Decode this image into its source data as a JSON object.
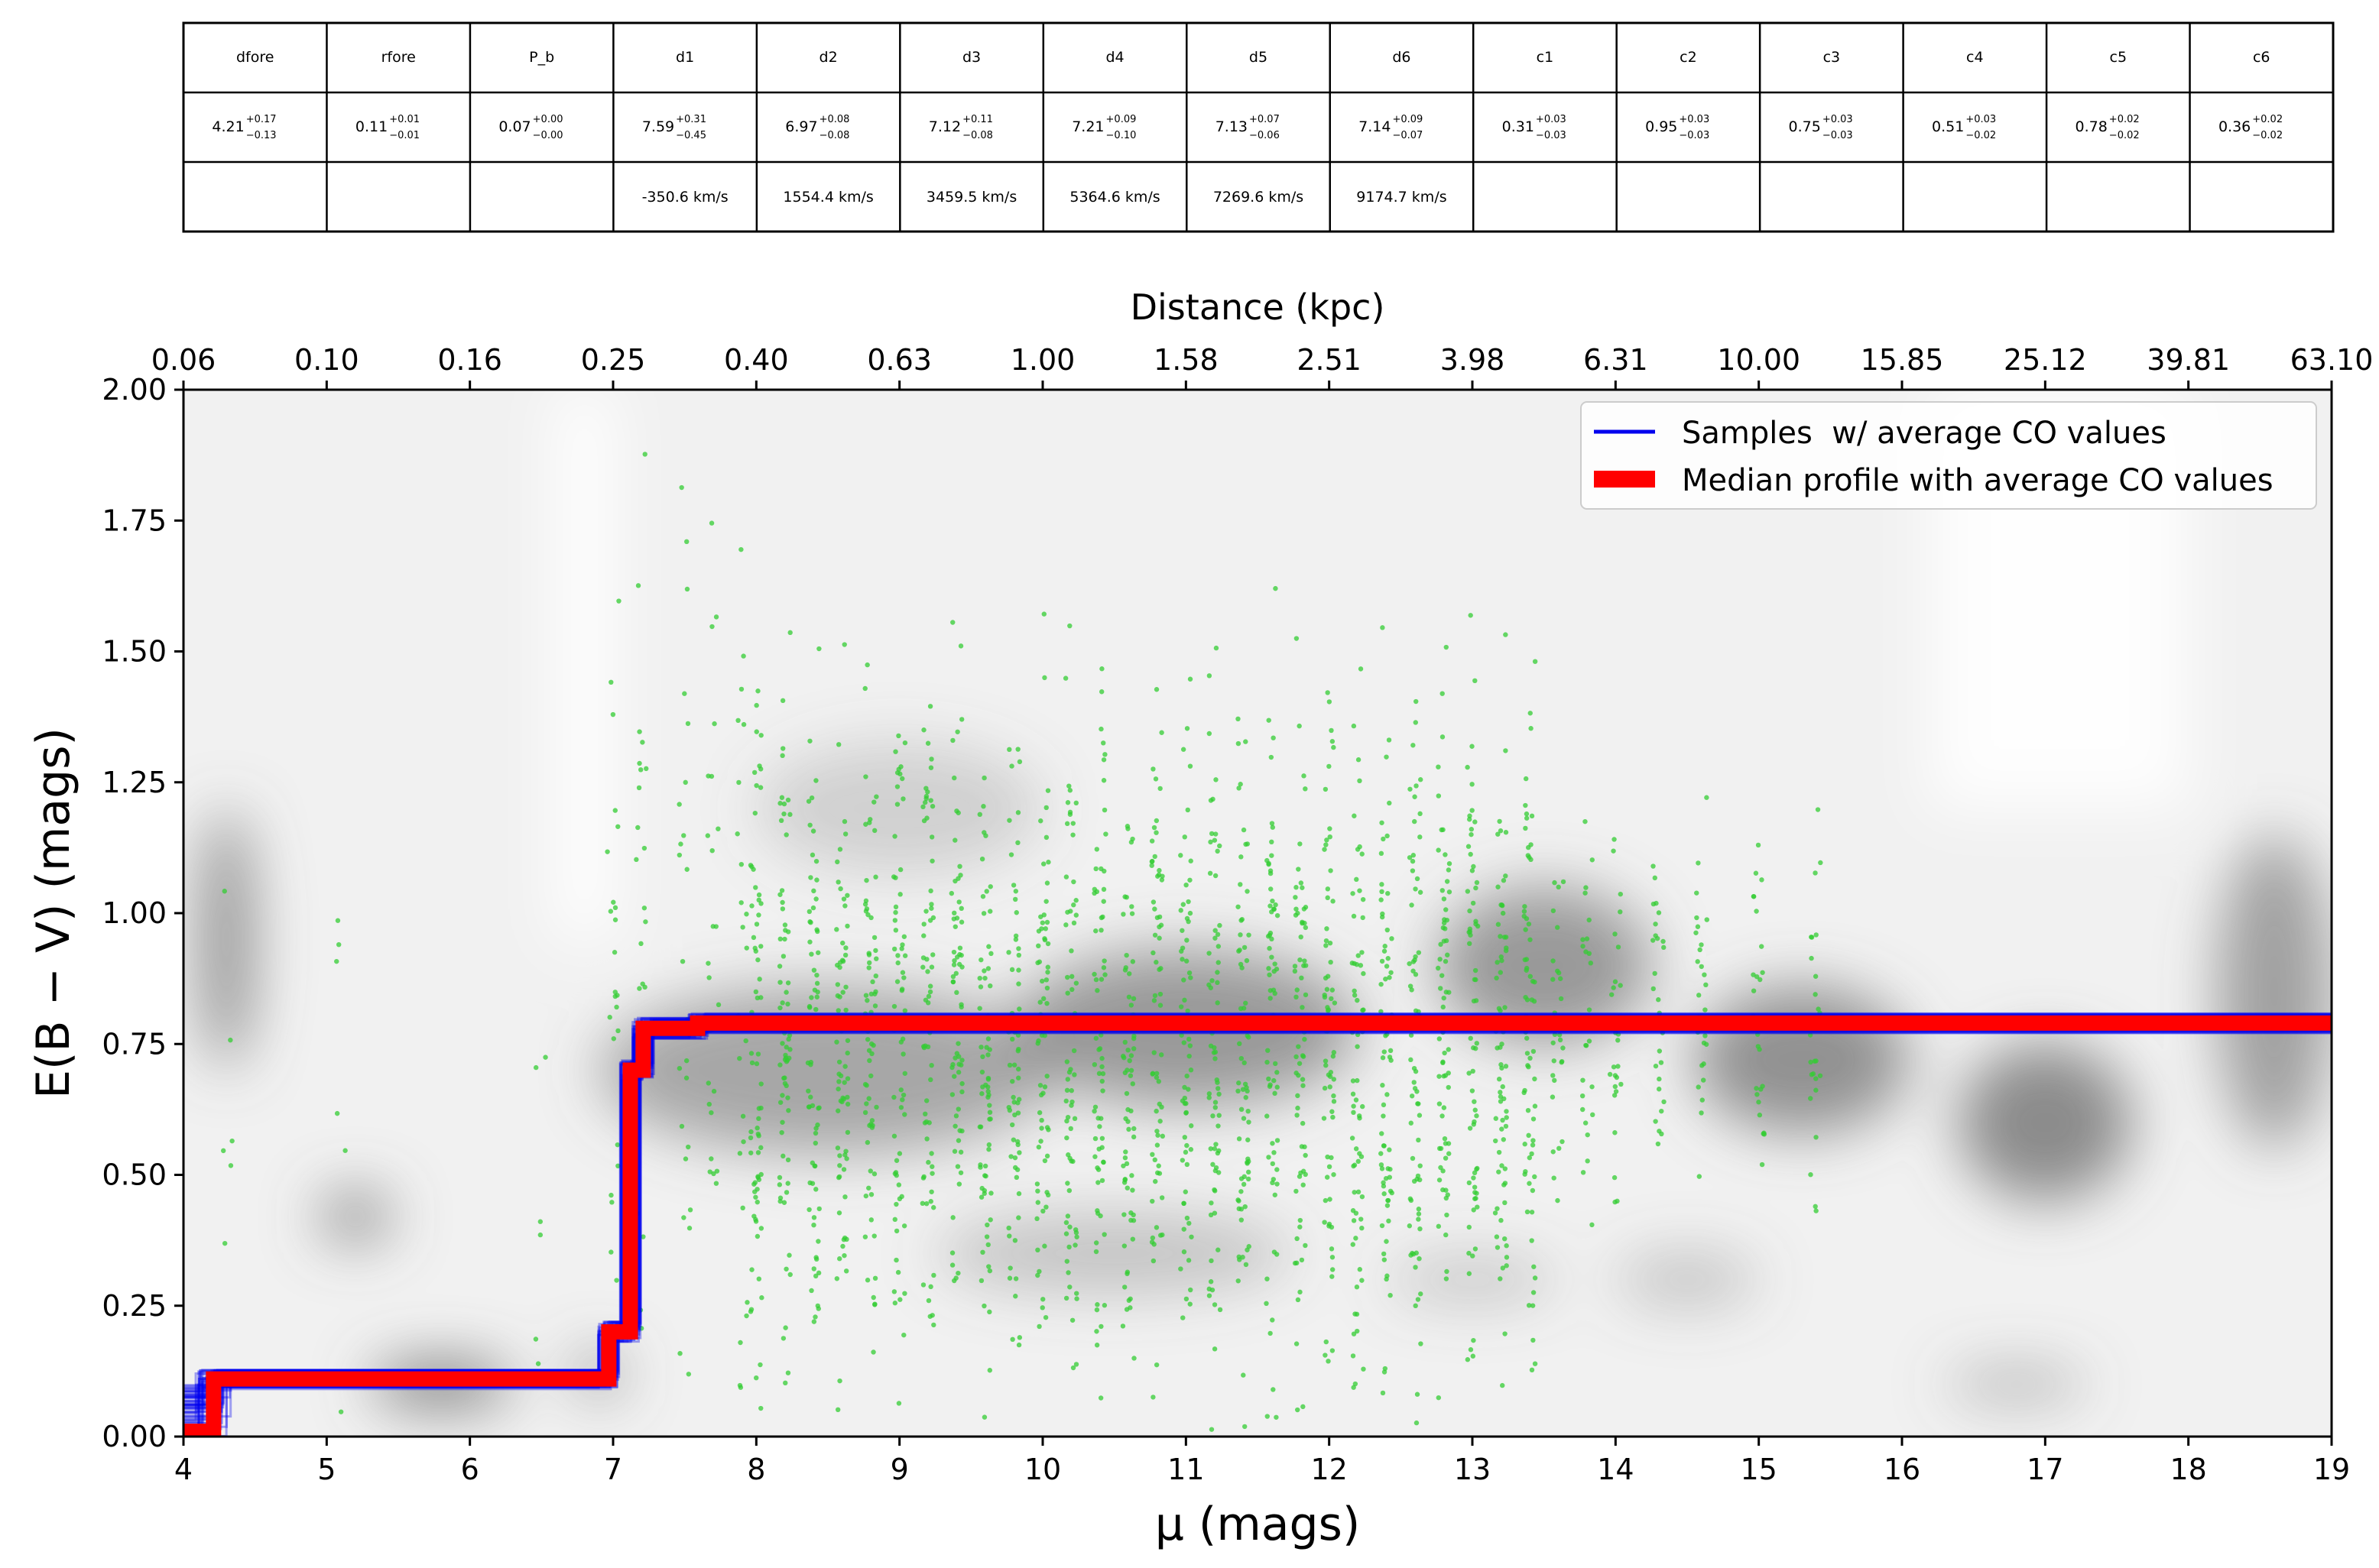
{
  "param_table": {
    "headers": [
      "dfore",
      "rfore",
      "P_b",
      "d1",
      "d2",
      "d3",
      "d4",
      "d5",
      "d6",
      "c1",
      "c2",
      "c3",
      "c4",
      "c5",
      "c6"
    ],
    "values": [
      {
        "v": "4.21",
        "up": "+0.17",
        "lo": "−0.13"
      },
      {
        "v": "0.11",
        "up": "+0.01",
        "lo": "−0.01"
      },
      {
        "v": "0.07",
        "up": "+0.00",
        "lo": "−0.00"
      },
      {
        "v": "7.59",
        "up": "+0.31",
        "lo": "−0.45"
      },
      {
        "v": "6.97",
        "up": "+0.08",
        "lo": "−0.08"
      },
      {
        "v": "7.12",
        "up": "+0.11",
        "lo": "−0.08"
      },
      {
        "v": "7.21",
        "up": "+0.09",
        "lo": "−0.10"
      },
      {
        "v": "7.13",
        "up": "+0.07",
        "lo": "−0.06"
      },
      {
        "v": "7.14",
        "up": "+0.09",
        "lo": "−0.07"
      },
      {
        "v": "0.31",
        "up": "+0.03",
        "lo": "−0.03"
      },
      {
        "v": "0.95",
        "up": "+0.03",
        "lo": "−0.03"
      },
      {
        "v": "0.75",
        "up": "+0.03",
        "lo": "−0.03"
      },
      {
        "v": "0.51",
        "up": "+0.03",
        "lo": "−0.02"
      },
      {
        "v": "0.78",
        "up": "+0.02",
        "lo": "−0.02"
      },
      {
        "v": "0.36",
        "up": "+0.02",
        "lo": "−0.02"
      }
    ],
    "velocities": [
      "",
      "",
      "",
      "-350.6 km/s",
      "1554.4 km/s",
      "3459.5 km/s",
      "5364.6 km/s",
      "7269.6 km/s",
      "9174.7 km/s",
      "",
      "",
      "",
      "",
      "",
      ""
    ]
  },
  "chart_data": {
    "type": "line",
    "xlabel": "μ (mags)",
    "ylabel": "E(B − V) (mags)",
    "top_xlabel": "Distance (kpc)",
    "xlim": [
      4,
      19
    ],
    "ylim": [
      0,
      2
    ],
    "x_ticks": [
      "4",
      "5",
      "6",
      "7",
      "8",
      "9",
      "10",
      "11",
      "12",
      "13",
      "14",
      "15",
      "16",
      "17",
      "18",
      "19"
    ],
    "y_ticks": [
      "0.00",
      "0.25",
      "0.50",
      "0.75",
      "1.00",
      "1.25",
      "1.50",
      "1.75",
      "2.00"
    ],
    "top_ticks": [
      "0.06",
      "0.10",
      "0.16",
      "0.25",
      "0.40",
      "0.63",
      "1.00",
      "1.58",
      "2.51",
      "3.98",
      "6.31",
      "10.00",
      "15.85",
      "25.12",
      "39.81",
      "63.10"
    ],
    "legend_position": "top-right",
    "grid": false,
    "colors": {
      "samples": "#0000ee",
      "median": "#ff0000",
      "stars": "#33cc33",
      "background": "#6a6a6a"
    },
    "series": [
      {
        "name": "Samples  w/ average CO values",
        "color": "#0000ee",
        "steps_mu": [
          4.0,
          4.21,
          6.97,
          7.12,
          7.21,
          7.59,
          19.0
        ],
        "steps_ebv": [
          0.0,
          0.11,
          0.2,
          0.7,
          0.78,
          0.79,
          0.79
        ]
      },
      {
        "name": "Median profile with average CO values",
        "color": "#ff0000",
        "x": [
          4.0,
          4.21,
          4.21,
          6.97,
          6.97,
          7.12,
          7.12,
          7.21,
          7.21,
          7.59,
          7.59,
          19.0
        ],
        "y": [
          0.01,
          0.01,
          0.11,
          0.11,
          0.2,
          0.2,
          0.7,
          0.7,
          0.78,
          0.78,
          0.79,
          0.79
        ]
      }
    ],
    "stars_note_columns": [
      4.3,
      5.1,
      6.5,
      7.0,
      7.2,
      7.5,
      7.7,
      7.9,
      8.0,
      8.2,
      8.4,
      8.6,
      8.8,
      9.0,
      9.2,
      9.4,
      9.6,
      9.8,
      10.0,
      10.2,
      10.4,
      10.6,
      10.8,
      11.0,
      11.2,
      11.4,
      11.6,
      11.8,
      12.0,
      12.2,
      12.4,
      12.6,
      12.8,
      13.0,
      13.2,
      13.4,
      13.6,
      13.8,
      14.0,
      14.3,
      14.6,
      15.0,
      15.4
    ]
  }
}
